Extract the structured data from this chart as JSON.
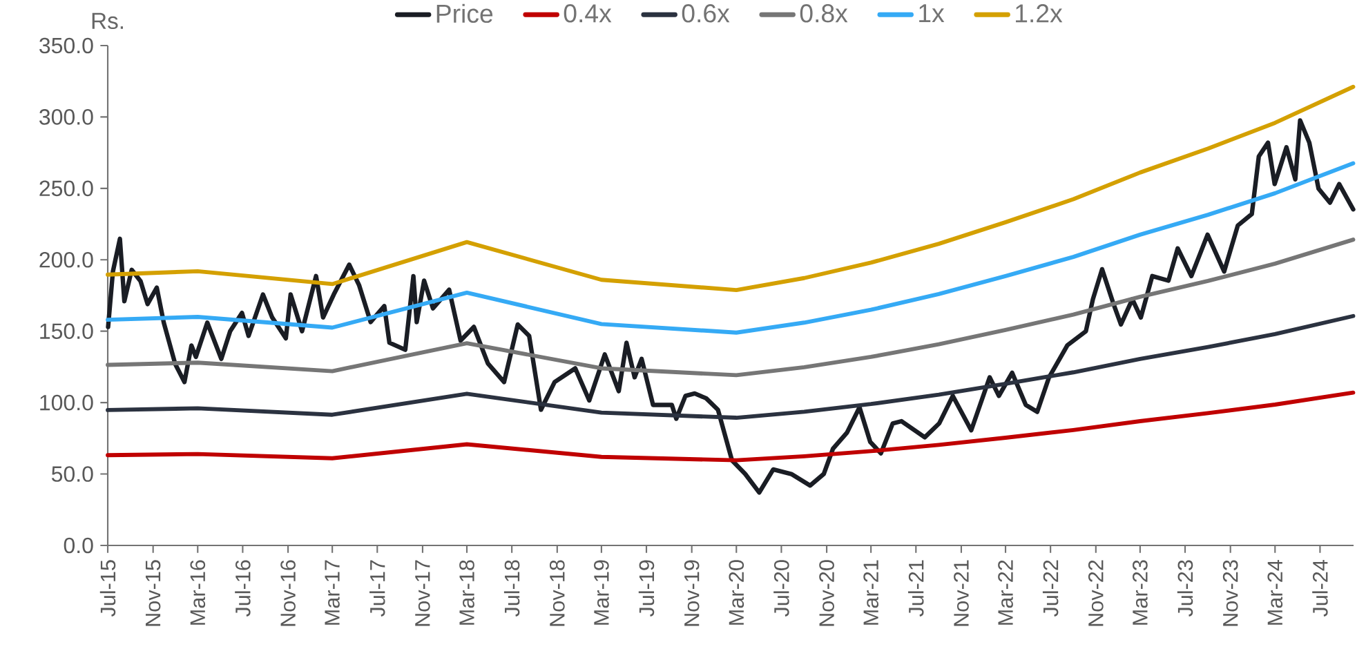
{
  "chart_data": {
    "type": "line",
    "ylabel": "Rs.",
    "legend": "top",
    "xlim": [
      "2015-07-01",
      "2024-09-30"
    ],
    "ylim": [
      0,
      350
    ],
    "yticks": [
      {
        "value": 0,
        "label": "0.0"
      },
      {
        "value": 50,
        "label": "50.0"
      },
      {
        "value": 100,
        "label": "100.0"
      },
      {
        "value": 150,
        "label": "150.0"
      },
      {
        "value": 200,
        "label": "200.0"
      },
      {
        "value": 250,
        "label": "250.0"
      },
      {
        "value": 300,
        "label": "300.0"
      },
      {
        "value": 350,
        "label": "350.0"
      }
    ],
    "xticks": [
      {
        "value": "2015-07-01",
        "label": "Jul-15"
      },
      {
        "value": "2015-11-01",
        "label": "Nov-15"
      },
      {
        "value": "2016-03-01",
        "label": "Mar-16"
      },
      {
        "value": "2016-07-01",
        "label": "Jul-16"
      },
      {
        "value": "2016-11-01",
        "label": "Nov-16"
      },
      {
        "value": "2017-03-01",
        "label": "Mar-17"
      },
      {
        "value": "2017-07-01",
        "label": "Jul-17"
      },
      {
        "value": "2017-11-01",
        "label": "Nov-17"
      },
      {
        "value": "2018-03-01",
        "label": "Mar-18"
      },
      {
        "value": "2018-07-01",
        "label": "Jul-18"
      },
      {
        "value": "2018-11-01",
        "label": "Nov-18"
      },
      {
        "value": "2019-03-01",
        "label": "Mar-19"
      },
      {
        "value": "2019-07-01",
        "label": "Jul-19"
      },
      {
        "value": "2019-11-01",
        "label": "Nov-19"
      },
      {
        "value": "2020-03-01",
        "label": "Mar-20"
      },
      {
        "value": "2020-07-01",
        "label": "Jul-20"
      },
      {
        "value": "2020-11-01",
        "label": "Nov-20"
      },
      {
        "value": "2021-03-01",
        "label": "Mar-21"
      },
      {
        "value": "2021-07-01",
        "label": "Jul-21"
      },
      {
        "value": "2021-11-01",
        "label": "Nov-21"
      },
      {
        "value": "2022-03-01",
        "label": "Mar-22"
      },
      {
        "value": "2022-07-01",
        "label": "Jul-22"
      },
      {
        "value": "2022-11-01",
        "label": "Nov-22"
      },
      {
        "value": "2023-03-01",
        "label": "Mar-23"
      },
      {
        "value": "2023-07-01",
        "label": "Jul-23"
      },
      {
        "value": "2023-11-01",
        "label": "Nov-23"
      },
      {
        "value": "2024-03-01",
        "label": "Mar-24"
      },
      {
        "value": "2024-07-01",
        "label": "Jul-24"
      }
    ],
    "series": [
      {
        "name": "Price",
        "color": "#1a1d24",
        "x": [
          "2015-07-02",
          "2015-07-15",
          "2015-08-03",
          "2015-08-15",
          "2015-09-04",
          "2015-09-28",
          "2015-10-17",
          "2015-11-11",
          "2015-11-30",
          "2015-12-31",
          "2016-01-25",
          "2016-02-13",
          "2016-02-25",
          "2016-03-27",
          "2016-05-04",
          "2016-05-28",
          "2016-06-29",
          "2016-07-17",
          "2016-08-25",
          "2016-09-19",
          "2016-10-26",
          "2016-11-08",
          "2016-12-09",
          "2017-01-16",
          "2017-02-04",
          "2017-03-05",
          "2017-04-16",
          "2017-05-13",
          "2017-06-13",
          "2017-07-20",
          "2017-08-03",
          "2017-09-15",
          "2017-10-07",
          "2017-10-16",
          "2017-11-05",
          "2017-11-29",
          "2018-01-12",
          "2018-02-12",
          "2018-03-20",
          "2018-04-27",
          "2018-06-10",
          "2018-07-17",
          "2018-08-17",
          "2018-09-18",
          "2018-10-25",
          "2018-12-20",
          "2019-01-27",
          "2019-03-10",
          "2019-04-17",
          "2019-05-08",
          "2019-05-30",
          "2019-06-18",
          "2019-07-19",
          "2019-09-08",
          "2019-09-20",
          "2019-10-15",
          "2019-11-09",
          "2019-12-10",
          "2020-01-11",
          "2020-02-18",
          "2020-03-25",
          "2020-05-02",
          "2020-06-09",
          "2020-07-28",
          "2020-09-17",
          "2020-10-24",
          "2020-11-18",
          "2020-12-26",
          "2021-01-29",
          "2021-02-27",
          "2021-03-28",
          "2021-04-29",
          "2021-05-23",
          "2021-07-25",
          "2021-09-02",
          "2021-10-09",
          "2021-11-28",
          "2022-01-17",
          "2022-02-11",
          "2022-03-19",
          "2022-04-25",
          "2022-05-26",
          "2022-06-27",
          "2022-08-16",
          "2022-10-05",
          "2022-10-24",
          "2022-11-18",
          "2022-12-19",
          "2023-01-08",
          "2023-02-08",
          "2023-03-03",
          "2023-04-03",
          "2023-05-17",
          "2023-06-11",
          "2023-07-18",
          "2023-08-31",
          "2023-10-15",
          "2023-11-21",
          "2023-12-29",
          "2024-01-17",
          "2024-02-11",
          "2024-02-29",
          "2024-04-01",
          "2024-04-25",
          "2024-05-08",
          "2024-06-02",
          "2024-06-27",
          "2024-07-28",
          "2024-08-22",
          "2024-09-29"
        ],
        "values": [
          153,
          191.8,
          214.7,
          171,
          193,
          185,
          169,
          180.5,
          156,
          127,
          114.4,
          140,
          132,
          156,
          130.6,
          150,
          162.8,
          146.7,
          175.7,
          159.6,
          145,
          175.7,
          150,
          188.6,
          159.6,
          175.7,
          196.6,
          182,
          156.4,
          167.6,
          141.9,
          137,
          188.6,
          156.4,
          185.4,
          166,
          179,
          143.4,
          153,
          127.4,
          114.4,
          154.7,
          146.7,
          95,
          114.4,
          124,
          101.5,
          133.7,
          108,
          141.9,
          117.7,
          130.6,
          98.4,
          98.4,
          88.7,
          104.7,
          106.4,
          103,
          95,
          59.6,
          50,
          37,
          53.2,
          50,
          41.9,
          50,
          67.7,
          79,
          96.7,
          72.5,
          64.5,
          85.4,
          87,
          75.7,
          85.4,
          104.7,
          80.6,
          117.7,
          104.7,
          120.9,
          98.4,
          93.5,
          117.7,
          140.2,
          150,
          172.4,
          193.4,
          169,
          154.7,
          172.4,
          159.6,
          188.6,
          185.4,
          208,
          188.6,
          217.6,
          191.8,
          224,
          232,
          272.4,
          282,
          253,
          278.8,
          256.3,
          297.6,
          282,
          249.8,
          240,
          253,
          235.3
        ]
      },
      {
        "name": "0.4x",
        "color": "#c00000",
        "x": [
          "2015-07-01",
          "2016-03-01",
          "2017-03-01",
          "2018-03-01",
          "2019-03-01",
          "2020-03-01",
          "2020-09-01",
          "2021-03-01",
          "2021-09-01",
          "2022-03-01",
          "2022-09-01",
          "2023-03-01",
          "2023-09-01",
          "2024-03-01",
          "2024-09-29"
        ],
        "values": [
          63.2,
          64,
          61,
          70.8,
          62,
          59.6,
          62.4,
          66,
          70.4,
          75.4,
          80.8,
          87,
          92.6,
          98.6,
          107
        ]
      },
      {
        "name": "0.6x",
        "color": "#2b3240",
        "x": [
          "2015-07-01",
          "2016-03-01",
          "2017-03-01",
          "2018-03-01",
          "2019-03-01",
          "2020-03-01",
          "2020-09-01",
          "2021-03-01",
          "2021-09-01",
          "2022-03-01",
          "2022-09-01",
          "2023-03-01",
          "2023-09-01",
          "2024-03-01",
          "2024-09-29"
        ],
        "values": [
          94.8,
          96,
          91.5,
          106.2,
          93,
          89.4,
          93.6,
          99,
          105.6,
          113.2,
          121.2,
          130.6,
          138.9,
          148,
          160.6
        ]
      },
      {
        "name": "0.8x",
        "color": "#767676",
        "x": [
          "2015-07-01",
          "2016-03-01",
          "2017-03-01",
          "2018-03-01",
          "2019-03-01",
          "2020-03-01",
          "2020-09-01",
          "2021-03-01",
          "2021-09-01",
          "2022-03-01",
          "2022-09-01",
          "2023-03-01",
          "2023-09-01",
          "2024-03-01",
          "2024-09-29"
        ],
        "values": [
          126.4,
          128,
          122,
          141.6,
          124,
          119.2,
          124.8,
          132,
          140.8,
          150.9,
          161.6,
          174.1,
          185.2,
          197.3,
          214.1
        ]
      },
      {
        "name": "1x",
        "color": "#35aaf5",
        "x": [
          "2015-07-01",
          "2016-03-01",
          "2017-03-01",
          "2018-03-01",
          "2019-03-01",
          "2020-03-01",
          "2020-09-01",
          "2021-03-01",
          "2021-09-01",
          "2022-03-01",
          "2022-09-01",
          "2023-03-01",
          "2023-09-01",
          "2024-03-01",
          "2024-09-29"
        ],
        "values": [
          158,
          160,
          152.5,
          177,
          155,
          149,
          156,
          165,
          176,
          188.6,
          202,
          217.6,
          231.5,
          246.6,
          267.6
        ]
      },
      {
        "name": "1.2x",
        "color": "#d4a000",
        "x": [
          "2015-07-01",
          "2016-03-01",
          "2017-03-01",
          "2018-03-01",
          "2019-03-01",
          "2020-03-01",
          "2020-09-01",
          "2021-03-01",
          "2021-09-01",
          "2022-03-01",
          "2022-09-01",
          "2023-03-01",
          "2023-09-01",
          "2024-03-01",
          "2024-09-29"
        ],
        "values": [
          189.6,
          192,
          183,
          212.4,
          186,
          178.8,
          187.2,
          198,
          211.2,
          226.3,
          242.4,
          261.1,
          277.8,
          295.9,
          321.1
        ]
      }
    ]
  }
}
